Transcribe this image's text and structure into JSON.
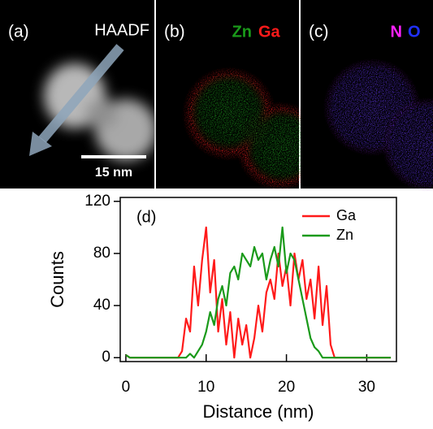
{
  "panels": [
    {
      "label": "(a)",
      "title": "HAADF",
      "scale_bar": "15 nm"
    },
    {
      "label": "(b)",
      "elements": [
        "Zn",
        "Ga"
      ]
    },
    {
      "label": "(c)",
      "elements": [
        "N",
        "O"
      ]
    }
  ],
  "chart_data": {
    "type": "line",
    "annotation": "(d)",
    "x_label": "Distance (nm)",
    "y_label": "Counts",
    "x": [
      0,
      0.5,
      1,
      1.5,
      2,
      2.5,
      3,
      3.5,
      4,
      4.5,
      5,
      5.5,
      6,
      6.5,
      7,
      7.5,
      8,
      8.5,
      9,
      9.5,
      10,
      10.5,
      11,
      11.5,
      12,
      12.5,
      13,
      13.5,
      14,
      14.5,
      15,
      15.5,
      16,
      16.5,
      17,
      17.5,
      18,
      18.5,
      19,
      19.5,
      20,
      20.5,
      21,
      21.5,
      22,
      22.5,
      23,
      23.5,
      24,
      24.5,
      25,
      25.5,
      26,
      26.5,
      27,
      27.5,
      28,
      28.5,
      29,
      29.5,
      30,
      30.5,
      31,
      31.5,
      32,
      32.5,
      33
    ],
    "series": [
      {
        "name": "Ga",
        "color": "#ff1a1a",
        "values": [
          2,
          0,
          0,
          0,
          0,
          0,
          0,
          0,
          0,
          0,
          0,
          0,
          0,
          0,
          5,
          30,
          20,
          70,
          40,
          75,
          100,
          50,
          75,
          20,
          45,
          10,
          35,
          0,
          30,
          10,
          25,
          0,
          15,
          40,
          20,
          50,
          60,
          45,
          80,
          55,
          70,
          40,
          80,
          60,
          75,
          45,
          60,
          30,
          70,
          25,
          55,
          10,
          0,
          0,
          0,
          0,
          0,
          0,
          0,
          0,
          0,
          0,
          0,
          0,
          0,
          0,
          0
        ]
      },
      {
        "name": "Zn",
        "color": "#1a9a1a",
        "values": [
          2,
          0,
          0,
          0,
          0,
          0,
          0,
          0,
          0,
          0,
          0,
          0,
          0,
          0,
          0,
          0,
          3,
          0,
          5,
          10,
          20,
          35,
          25,
          45,
          55,
          40,
          65,
          70,
          60,
          80,
          75,
          70,
          85,
          75,
          80,
          60,
          75,
          85,
          70,
          100,
          65,
          80,
          75,
          60,
          45,
          30,
          15,
          8,
          5,
          0,
          0,
          0,
          0,
          0,
          0,
          0,
          0,
          0,
          0,
          0,
          0,
          0,
          0,
          0,
          0,
          0,
          0
        ]
      }
    ],
    "xlim": [
      -0.7,
      33.7
    ],
    "xticks": [
      0,
      10,
      20,
      30
    ],
    "ylim": [
      -3,
      123
    ],
    "yticks": [
      0,
      40,
      80,
      120
    ],
    "legend": "upper right"
  }
}
